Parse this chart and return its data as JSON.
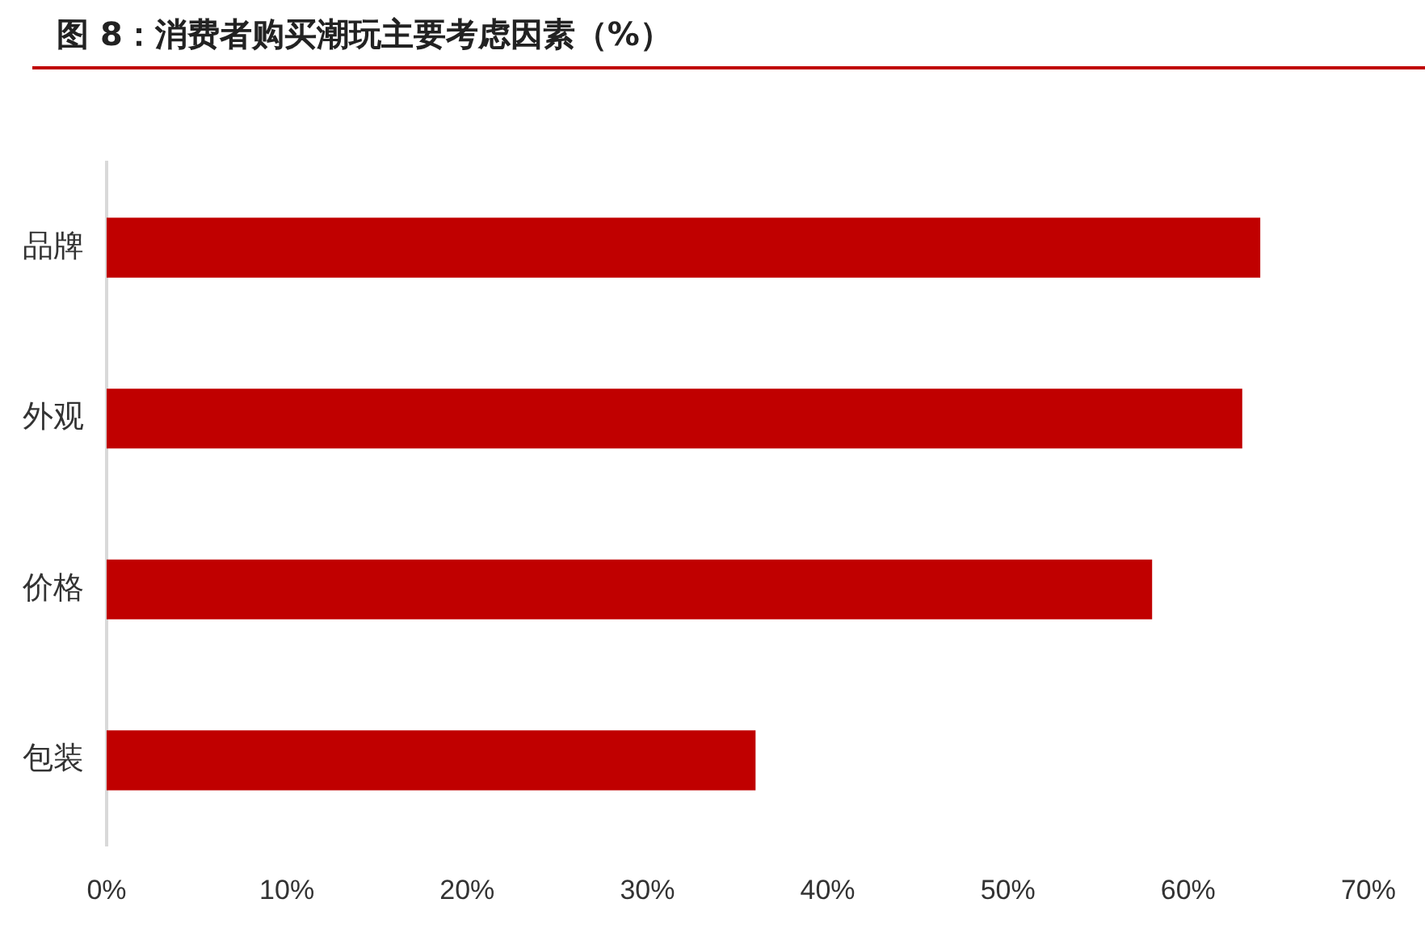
{
  "chart_data": {
    "type": "bar",
    "orientation": "horizontal",
    "title": "图 8：消费者购买潮玩主要考虑因素（%）",
    "categories": [
      "品牌",
      "外观",
      "价格",
      "包装"
    ],
    "values": [
      64,
      63,
      58,
      36
    ],
    "color": "#c00000",
    "xlim": [
      0,
      70
    ],
    "xticks": [
      {
        "value": 0,
        "label": "0%"
      },
      {
        "value": 10,
        "label": "10%"
      },
      {
        "value": 20,
        "label": "20%"
      },
      {
        "value": 30,
        "label": "30%"
      },
      {
        "value": 40,
        "label": "40%"
      },
      {
        "value": 50,
        "label": "50%"
      },
      {
        "value": 60,
        "label": "60%"
      },
      {
        "value": 70,
        "label": "70%"
      }
    ],
    "grid": false,
    "legend": false
  }
}
